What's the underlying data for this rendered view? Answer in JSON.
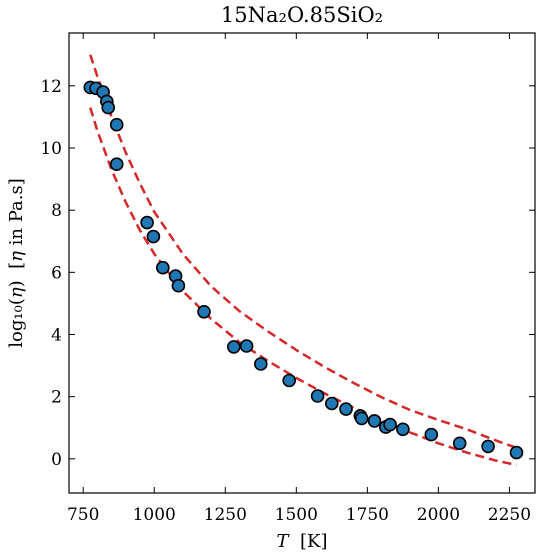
{
  "chart_data": {
    "type": "scatter",
    "title": "15Na₂O.85SiO₂",
    "xlabel_italic": "T",
    "xlabel_rest": "  [K]",
    "ylabel_main": "log₁₀(",
    "ylabel_eta": "η",
    "ylabel_mid": ")  [",
    "ylabel_eta2": "η",
    "ylabel_end": " in Pa.s]",
    "xlim": [
      700,
      2340
    ],
    "ylim": [
      -1.1,
      13.7
    ],
    "xticks": [
      750,
      1000,
      1250,
      1500,
      1750,
      2000,
      2250
    ],
    "yticks": [
      0,
      2,
      4,
      6,
      8,
      10,
      12
    ],
    "grid": false,
    "marker_color": "#1f77b4",
    "marker_edge": "#000000",
    "curve_color": "#d62728",
    "points": [
      {
        "x": 775,
        "y": 11.95
      },
      {
        "x": 795,
        "y": 11.92
      },
      {
        "x": 820,
        "y": 11.8
      },
      {
        "x": 833,
        "y": 11.5
      },
      {
        "x": 838,
        "y": 11.3
      },
      {
        "x": 868,
        "y": 10.75
      },
      {
        "x": 868,
        "y": 9.48
      },
      {
        "x": 975,
        "y": 7.6
      },
      {
        "x": 997,
        "y": 7.15
      },
      {
        "x": 1030,
        "y": 6.15
      },
      {
        "x": 1075,
        "y": 5.88
      },
      {
        "x": 1085,
        "y": 5.57
      },
      {
        "x": 1175,
        "y": 4.73
      },
      {
        "x": 1280,
        "y": 3.6
      },
      {
        "x": 1325,
        "y": 3.63
      },
      {
        "x": 1375,
        "y": 3.05
      },
      {
        "x": 1475,
        "y": 2.52
      },
      {
        "x": 1575,
        "y": 2.02
      },
      {
        "x": 1625,
        "y": 1.78
      },
      {
        "x": 1675,
        "y": 1.6
      },
      {
        "x": 1725,
        "y": 1.38
      },
      {
        "x": 1730,
        "y": 1.3
      },
      {
        "x": 1775,
        "y": 1.22
      },
      {
        "x": 1815,
        "y": 1.02
      },
      {
        "x": 1830,
        "y": 1.1
      },
      {
        "x": 1875,
        "y": 0.95
      },
      {
        "x": 1975,
        "y": 0.78
      },
      {
        "x": 2075,
        "y": 0.5
      },
      {
        "x": 2175,
        "y": 0.4
      },
      {
        "x": 2275,
        "y": 0.2
      }
    ],
    "curves": [
      {
        "x": [
          775,
          800,
          850,
          900,
          950,
          1000,
          1100,
          1200,
          1300,
          1400,
          1500,
          1600,
          1700,
          1800,
          1900,
          2000,
          2100,
          2200,
          2275
        ],
        "y": [
          13.0,
          12.3,
          11.0,
          9.85,
          8.85,
          7.95,
          6.6,
          5.55,
          4.75,
          4.1,
          3.5,
          2.95,
          2.45,
          1.98,
          1.57,
          1.25,
          0.95,
          0.6,
          0.35
        ]
      },
      {
        "x": [
          775,
          800,
          850,
          900,
          950,
          1000,
          1100,
          1200,
          1300,
          1400,
          1500,
          1600,
          1700,
          1800,
          1900,
          2000,
          2100,
          2200,
          2275
        ],
        "y": [
          11.3,
          10.55,
          9.3,
          8.25,
          7.35,
          6.6,
          5.4,
          4.5,
          3.75,
          3.15,
          2.6,
          2.1,
          1.65,
          1.25,
          0.85,
          0.5,
          0.2,
          -0.05,
          -0.2
        ]
      }
    ]
  }
}
